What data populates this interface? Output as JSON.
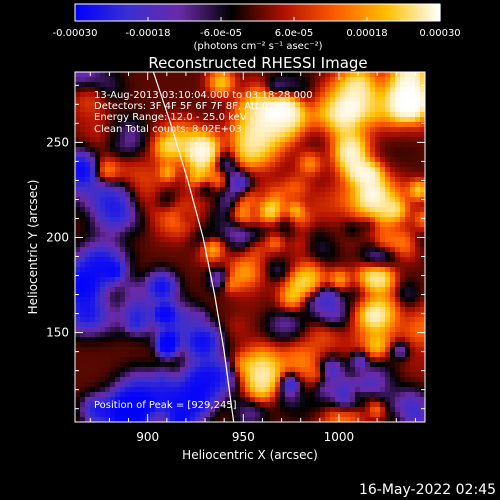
{
  "chart_data": {
    "type": "heatmap",
    "title": "Reconstructed RHESSI Image",
    "xlabel": "Heliocentric X (arcsec)",
    "ylabel": "Heliocentric Y (arcsec)",
    "xlim": [
      862,
      1045
    ],
    "ylim": [
      103,
      287
    ],
    "x_ticks": [
      900,
      950,
      1000
    ],
    "y_ticks": [
      150,
      200,
      250
    ],
    "x_tick_labels": [
      "900",
      "950",
      "1000"
    ],
    "y_tick_labels": [
      "150",
      "200",
      "250"
    ],
    "colorbar": {
      "range": [
        -0.0003,
        0.0003
      ],
      "tick_values": [
        -0.0003,
        -0.00018,
        -6e-05,
        6e-05,
        0.00018,
        0.0003
      ],
      "tick_labels": [
        "-0.00030",
        "-0.00018",
        "-6.0e-05",
        "6.0e-05",
        "0.00018",
        "0.00030"
      ],
      "units_label": "(photons cm⁻² s⁻¹ asec⁻²)",
      "colors": [
        "#0000ff",
        "#3a2fd0",
        "#6a2aa8",
        "#000000",
        "#b01000",
        "#ff5a00",
        "#ffc000",
        "#ffffff"
      ]
    },
    "annotations": {
      "time_range": "13-Aug-2013 03:10:04.000 to 03:18:28.000",
      "detectors": "Detectors: 3F 4F 5F 6F 7F 8F, Att 0",
      "energy_range": "Energy Range: 12.0 - 25.0 keV",
      "clean_counts": "Clean     Total counts: 8.02E+03",
      "peak_position": "Position of Peak = [929,245]"
    },
    "peak": [
      929,
      245
    ],
    "solar_limb": [
      [
        903,
        287
      ],
      [
        912,
        260
      ],
      [
        921,
        230
      ],
      [
        929,
        200
      ],
      [
        935,
        170
      ],
      [
        940,
        140
      ],
      [
        944,
        110
      ],
      [
        945,
        103
      ]
    ],
    "footer_date": "16-May-2022 02:45"
  }
}
